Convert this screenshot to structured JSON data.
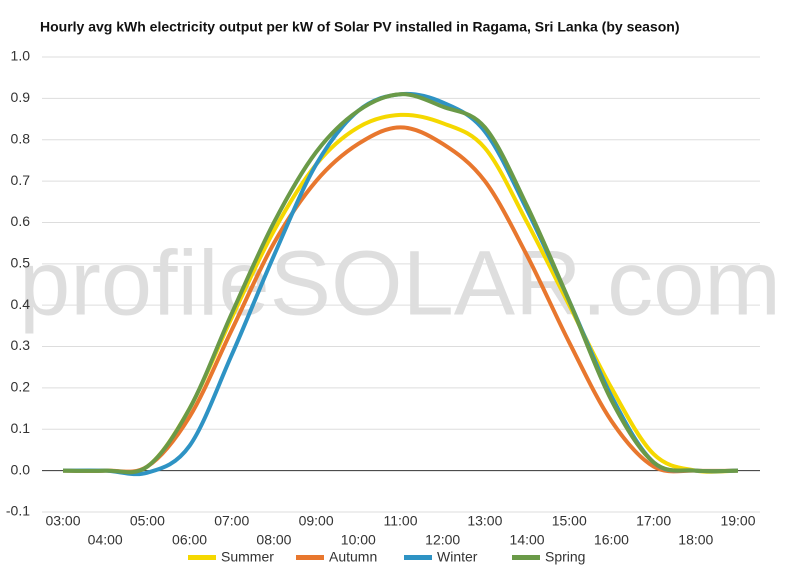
{
  "chart_data": {
    "type": "line",
    "title": "Hourly avg kWh electricity output per kW of Solar PV installed in Ragama, Sri Lanka (by season)",
    "watermark": "profileSOLAR.com",
    "categories": [
      "03:00",
      "04:00",
      "05:00",
      "06:00",
      "07:00",
      "08:00",
      "09:00",
      "10:00",
      "11:00",
      "12:00",
      "13:00",
      "14:00",
      "15:00",
      "16:00",
      "17:00",
      "18:00",
      "19:00"
    ],
    "series": [
      {
        "name": "Summer",
        "color": "#f5d800",
        "values": [
          0,
          0,
          0.01,
          0.15,
          0.37,
          0.58,
          0.74,
          0.83,
          0.86,
          0.84,
          0.78,
          0.6,
          0.4,
          0.2,
          0.04,
          0,
          0
        ]
      },
      {
        "name": "Autumn",
        "color": "#e8772e",
        "values": [
          0,
          0,
          0.01,
          0.13,
          0.34,
          0.55,
          0.7,
          0.79,
          0.83,
          0.79,
          0.7,
          0.52,
          0.31,
          0.12,
          0.01,
          0,
          0
        ]
      },
      {
        "name": "Winter",
        "color": "#2e93c4",
        "values": [
          0,
          0,
          -0.005,
          0.06,
          0.28,
          0.52,
          0.74,
          0.87,
          0.91,
          0.89,
          0.82,
          0.63,
          0.41,
          0.18,
          0.02,
          0,
          0
        ]
      },
      {
        "name": "Spring",
        "color": "#6a9a48",
        "values": [
          0,
          0,
          0.01,
          0.15,
          0.38,
          0.6,
          0.77,
          0.87,
          0.91,
          0.88,
          0.83,
          0.64,
          0.41,
          0.17,
          0.02,
          0,
          0
        ]
      }
    ],
    "ylim": [
      -0.1,
      1.0
    ],
    "yticks": [
      -0.1,
      {
        "value": 0,
        "label": "0.0"
      },
      0.1,
      0.2,
      0.3,
      0.4,
      0.5,
      0.6,
      0.7,
      0.8,
      0.9,
      {
        "value": 1,
        "label": "1.0"
      }
    ],
    "grid": true
  }
}
